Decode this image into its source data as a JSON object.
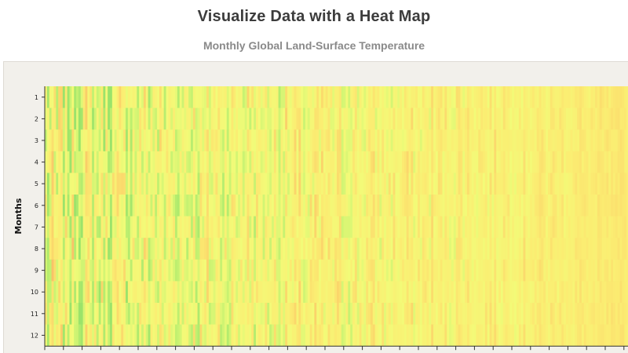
{
  "header": {
    "title": "Visualize Data with a Heat Map",
    "subtitle": "Monthly Global Land-Surface Temperature"
  },
  "chart_data": {
    "type": "heatmap",
    "title": "Visualize Data with a Heat Map",
    "subtitle": "Monthly Global Land-Surface Temperature",
    "xlabel": "",
    "ylabel": "Months",
    "y_categories": [
      "1",
      "2",
      "3",
      "4",
      "5",
      "6",
      "7",
      "8",
      "9",
      "10",
      "11",
      "12"
    ],
    "x_tick_labels": [],
    "legend": "none",
    "grid": false,
    "color_scale": [
      "#9be36a",
      "#c6f271",
      "#f2fb78",
      "#fbed72",
      "#fbd46a",
      "#f8b467",
      "#f0916a",
      "#e06a6a"
    ],
    "column_count": 260,
    "trend": "cooler and more varied on the left, gradually warmer and more uniform toward the right"
  },
  "colors": {
    "panel_background": "#f2f0eb",
    "title": "#3c3c3c",
    "subtitle": "#8a8a8a"
  }
}
